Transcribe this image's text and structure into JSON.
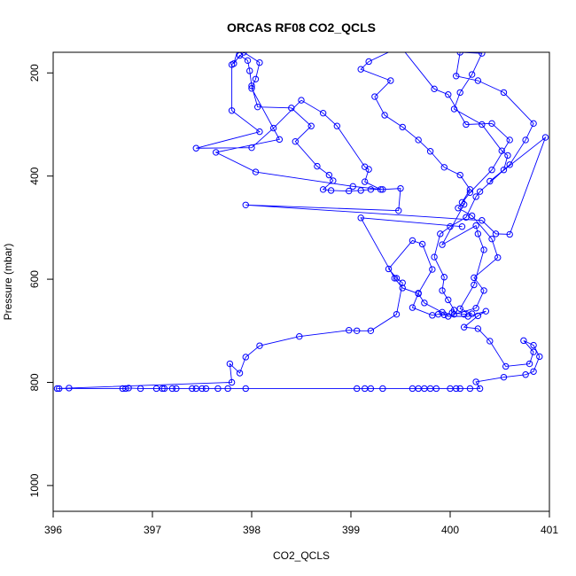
{
  "chart_data": {
    "type": "line",
    "title": "ORCAS RF08 CO2_QCLS",
    "xlabel": "CO2_QCLS",
    "ylabel": "Pressure (mbar)",
    "xlim": [
      396.0,
      401.0
    ],
    "ylim": [
      1050,
      160
    ],
    "y_reversed": true,
    "grid": false,
    "marker": "open-circle",
    "series_color": "#0000ff",
    "x_ticks": [
      {
        "value": 396,
        "label": "396"
      },
      {
        "value": 397,
        "label": "397"
      },
      {
        "value": 398,
        "label": "398"
      },
      {
        "value": 399,
        "label": "399"
      },
      {
        "value": 400,
        "label": "400"
      },
      {
        "value": 401,
        "label": "401"
      }
    ],
    "y_ticks": [
      {
        "value": 200,
        "label": "200"
      },
      {
        "value": 400,
        "label": "400"
      },
      {
        "value": 600,
        "label": "600"
      },
      {
        "value": 800,
        "label": "800"
      },
      {
        "value": 1000,
        "label": "1000"
      }
    ],
    "series": [
      {
        "points": [
          [
            397.86,
            155
          ],
          [
            397.82,
            182
          ],
          [
            397.88,
            166
          ],
          [
            397.96,
            176
          ],
          [
            397.98,
            196
          ],
          [
            398.0,
            225
          ],
          [
            398.06,
            266
          ],
          [
            398.4,
            268
          ],
          [
            398.6,
            303
          ],
          [
            398.44,
            333
          ],
          [
            398.66,
            381
          ],
          [
            398.78,
            398
          ],
          [
            398.82,
            409
          ],
          [
            398.72,
            426
          ],
          [
            398.8,
            428
          ],
          [
            398.98,
            429
          ],
          [
            399.1,
            428
          ],
          [
            399.2,
            426
          ],
          [
            399.3,
            426
          ],
          [
            399.14,
            411
          ],
          [
            399.18,
            387
          ],
          [
            399.14,
            382
          ],
          [
            398.86,
            303
          ],
          [
            398.72,
            278
          ],
          [
            398.5,
            253
          ],
          [
            398.22,
            307
          ],
          [
            398.0,
            345
          ],
          [
            397.44,
            346
          ],
          [
            398.08,
            314
          ],
          [
            397.8,
            273
          ],
          [
            397.8,
            184
          ],
          [
            397.92,
            160
          ],
          [
            398.08,
            180
          ],
          [
            398.04,
            212
          ],
          [
            398.0,
            230
          ],
          [
            398.28,
            329
          ],
          [
            397.64,
            354
          ],
          [
            398.04,
            392
          ],
          [
            399.02,
            420
          ],
          [
            399.32,
            426
          ],
          [
            399.5,
            424
          ],
          [
            399.48,
            467
          ],
          [
            397.94,
            456
          ],
          [
            400.32,
            486
          ],
          [
            400.46,
            512
          ],
          [
            400.6,
            513
          ],
          [
            400.96,
            325
          ],
          [
            400.4,
            410
          ],
          [
            400.54,
            388
          ],
          [
            400.58,
            360
          ],
          [
            400.52,
            351
          ],
          [
            400.32,
            300
          ],
          [
            400.04,
            270
          ],
          [
            400.1,
            238
          ],
          [
            400.22,
            203
          ],
          [
            400.32,
            162
          ],
          [
            400.1,
            160
          ],
          [
            400.06,
            206
          ],
          [
            400.28,
            215
          ],
          [
            400.54,
            238
          ],
          [
            400.84,
            298
          ],
          [
            400.76,
            330
          ],
          [
            400.6,
            378
          ],
          [
            400.3,
            430
          ],
          [
            400.26,
            440
          ],
          [
            400.16,
            480
          ],
          [
            400.0,
            498
          ],
          [
            399.9,
            512
          ],
          [
            399.84,
            557
          ],
          [
            399.94,
            596
          ],
          [
            399.92,
            622
          ],
          [
            399.98,
            640
          ],
          [
            400.04,
            660
          ],
          [
            400.02,
            665
          ],
          [
            400.14,
            668
          ],
          [
            400.22,
            667
          ],
          [
            400.1,
            657
          ],
          [
            400.24,
            611
          ],
          [
            400.34,
            543
          ],
          [
            400.28,
            512
          ],
          [
            400.26,
            496
          ],
          [
            399.92,
            533
          ],
          [
            400.14,
            455
          ],
          [
            400.12,
            451
          ],
          [
            400.2,
            426
          ],
          [
            400.1,
            398
          ],
          [
            399.94,
            383
          ],
          [
            399.8,
            352
          ],
          [
            399.68,
            330
          ],
          [
            399.52,
            305
          ],
          [
            399.34,
            282
          ],
          [
            399.24,
            246
          ],
          [
            399.4,
            215
          ],
          [
            399.1,
            193
          ],
          [
            399.18,
            178
          ],
          [
            399.5,
            149
          ],
          [
            399.84,
            231
          ],
          [
            399.98,
            242
          ],
          [
            400.16,
            300
          ],
          [
            400.42,
            298
          ],
          [
            400.6,
            330
          ],
          [
            400.42,
            388
          ],
          [
            400.2,
            432
          ],
          [
            400.08,
            462
          ],
          [
            400.22,
            477
          ],
          [
            400.42,
            522
          ],
          [
            400.48,
            558
          ],
          [
            400.24,
            597
          ],
          [
            400.34,
            622
          ],
          [
            400.26,
            656
          ],
          [
            400.04,
            668
          ],
          [
            399.94,
            669
          ],
          [
            399.88,
            668
          ],
          [
            399.82,
            670
          ],
          [
            399.62,
            655
          ],
          [
            399.68,
            627
          ],
          [
            399.82,
            581
          ],
          [
            399.72,
            532
          ],
          [
            399.62,
            525
          ],
          [
            399.38,
            580
          ],
          [
            399.46,
            598
          ],
          [
            399.52,
            607
          ],
          [
            399.46,
            668
          ],
          [
            399.2,
            700
          ],
          [
            399.06,
            700
          ],
          [
            398.98,
            699
          ],
          [
            398.48,
            711
          ],
          [
            398.08,
            729
          ],
          [
            397.94,
            751
          ],
          [
            397.88,
            782
          ],
          [
            397.78,
            764
          ],
          [
            397.8,
            800
          ],
          [
            396.16,
            811
          ],
          [
            396.06,
            812
          ],
          [
            396.04,
            812
          ],
          [
            396.7,
            812
          ],
          [
            396.73,
            812
          ],
          [
            396.76,
            811
          ],
          [
            396.88,
            812
          ],
          [
            397.04,
            812
          ],
          [
            397.1,
            812
          ],
          [
            397.12,
            812
          ],
          [
            397.2,
            812
          ],
          [
            397.24,
            812
          ],
          [
            397.4,
            812
          ],
          [
            397.44,
            812
          ],
          [
            397.5,
            812
          ],
          [
            397.54,
            812
          ],
          [
            397.66,
            812
          ],
          [
            397.76,
            812
          ],
          [
            397.94,
            812
          ],
          [
            399.06,
            812
          ],
          [
            399.14,
            812
          ],
          [
            399.2,
            812
          ],
          [
            399.32,
            812
          ],
          [
            399.62,
            812
          ],
          [
            399.68,
            812
          ],
          [
            399.74,
            812
          ],
          [
            399.8,
            812
          ],
          [
            399.86,
            812
          ],
          [
            400.0,
            812
          ],
          [
            400.06,
            812
          ],
          [
            400.1,
            812
          ],
          [
            400.2,
            812
          ],
          [
            400.3,
            812
          ],
          [
            400.26,
            799
          ],
          [
            400.54,
            790
          ],
          [
            400.76,
            785
          ],
          [
            400.84,
            779
          ],
          [
            400.9,
            750
          ],
          [
            400.84,
            728
          ],
          [
            400.74,
            719
          ],
          [
            400.84,
            741
          ],
          [
            400.8,
            764
          ],
          [
            400.56,
            769
          ],
          [
            400.4,
            720
          ],
          [
            400.28,
            696
          ],
          [
            400.14,
            693
          ],
          [
            400.28,
            671
          ],
          [
            400.36,
            662
          ],
          [
            400.18,
            672
          ],
          [
            399.98,
            672
          ],
          [
            399.92,
            664
          ],
          [
            399.74,
            646
          ],
          [
            399.68,
            628
          ],
          [
            399.52,
            617
          ],
          [
            399.44,
            598
          ],
          [
            399.1,
            481
          ],
          [
            400.12,
            498
          ]
        ]
      }
    ]
  }
}
